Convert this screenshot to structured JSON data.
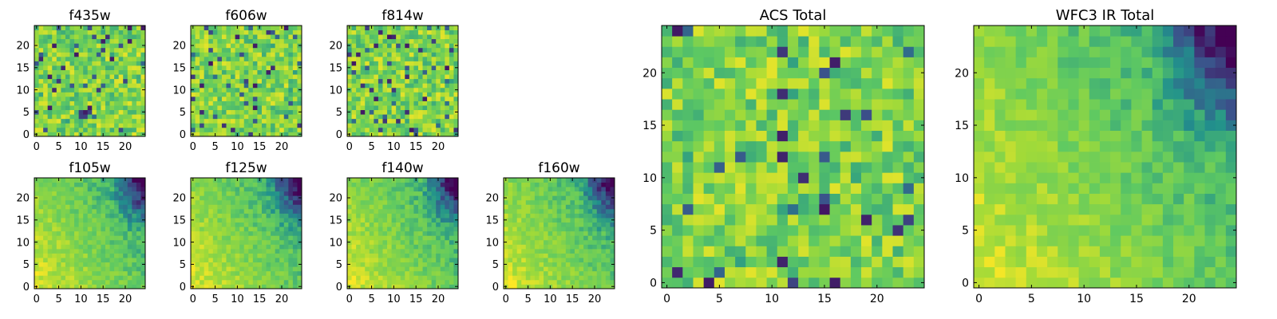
{
  "chart_data": [
    {
      "type": "heatmap",
      "title": "f435w",
      "xticks": [
        "0",
        "5",
        "10",
        "15",
        "20"
      ],
      "yticks": [
        "0",
        "5",
        "10",
        "15",
        "20"
      ],
      "xlim": [
        0,
        24
      ],
      "ylim": [
        0,
        24
      ],
      "grid": false,
      "colormap": "viridis",
      "pattern": "noise"
    },
    {
      "type": "heatmap",
      "title": "f606w",
      "xticks": [
        "0",
        "5",
        "10",
        "15",
        "20"
      ],
      "yticks": [
        "0",
        "5",
        "10",
        "15",
        "20"
      ],
      "xlim": [
        0,
        24
      ],
      "ylim": [
        0,
        24
      ],
      "grid": false,
      "colormap": "viridis",
      "pattern": "noise"
    },
    {
      "type": "heatmap",
      "title": "f814w",
      "xticks": [
        "0",
        "5",
        "10",
        "15",
        "20"
      ],
      "yticks": [
        "0",
        "5",
        "10",
        "15",
        "20"
      ],
      "xlim": [
        0,
        24
      ],
      "ylim": [
        0,
        24
      ],
      "grid": false,
      "colormap": "viridis",
      "pattern": "noise"
    },
    {
      "type": "heatmap",
      "title": "f105w",
      "xticks": [
        "0",
        "5",
        "10",
        "15",
        "20"
      ],
      "yticks": [
        "0",
        "5",
        "10",
        "15",
        "20"
      ],
      "xlim": [
        0,
        24
      ],
      "ylim": [
        0,
        24
      ],
      "grid": false,
      "colormap": "viridis",
      "pattern": "gradient"
    },
    {
      "type": "heatmap",
      "title": "f125w",
      "xticks": [
        "0",
        "5",
        "10",
        "15",
        "20"
      ],
      "yticks": [
        "0",
        "5",
        "10",
        "15",
        "20"
      ],
      "xlim": [
        0,
        24
      ],
      "ylim": [
        0,
        24
      ],
      "grid": false,
      "colormap": "viridis",
      "pattern": "gradient"
    },
    {
      "type": "heatmap",
      "title": "f140w",
      "xticks": [
        "0",
        "5",
        "10",
        "15",
        "20"
      ],
      "yticks": [
        "0",
        "5",
        "10",
        "15",
        "20"
      ],
      "xlim": [
        0,
        24
      ],
      "ylim": [
        0,
        24
      ],
      "grid": false,
      "colormap": "viridis",
      "pattern": "gradient"
    },
    {
      "type": "heatmap",
      "title": "f160w",
      "xticks": [
        "0",
        "5",
        "10",
        "15",
        "20"
      ],
      "yticks": [
        "0",
        "5",
        "10",
        "15",
        "20"
      ],
      "xlim": [
        0,
        24
      ],
      "ylim": [
        0,
        24
      ],
      "grid": false,
      "colormap": "viridis",
      "pattern": "gradient"
    },
    {
      "type": "heatmap",
      "title": "ACS Total",
      "xticks": [
        "0",
        "5",
        "10",
        "15",
        "20"
      ],
      "yticks": [
        "0",
        "5",
        "10",
        "15",
        "20"
      ],
      "xlim": [
        0,
        24
      ],
      "ylim": [
        0,
        24
      ],
      "grid": false,
      "colormap": "viridis",
      "pattern": "noise"
    },
    {
      "type": "heatmap",
      "title": "WFC3 IR Total",
      "xticks": [
        "0",
        "5",
        "10",
        "15",
        "20"
      ],
      "yticks": [
        "0",
        "5",
        "10",
        "15",
        "20"
      ],
      "xlim": [
        0,
        24
      ],
      "ylim": [
        0,
        24
      ],
      "grid": false,
      "colormap": "viridis",
      "pattern": "gradient"
    }
  ],
  "colors": {
    "viridis": [
      "#440154",
      "#3b528b",
      "#21918c",
      "#5ec962",
      "#a0da39",
      "#fde725"
    ]
  }
}
